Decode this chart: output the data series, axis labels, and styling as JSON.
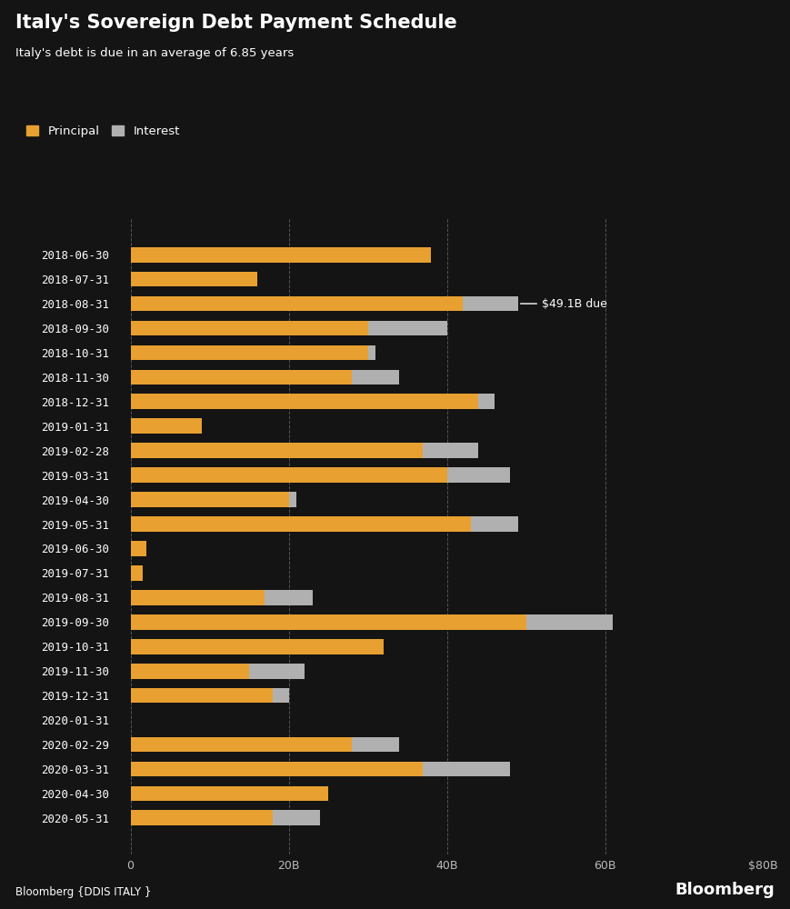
{
  "title": "Italy's Sovereign Debt Payment Schedule",
  "subtitle": "Italy's debt is due in an average of 6.85 years",
  "source": "Bloomberg {DDIS ITALY }",
  "annotation": "$49.1B due",
  "annotation_bar": "2018-08-31",
  "categories": [
    "2018-06-30",
    "2018-07-31",
    "2018-08-31",
    "2018-09-30",
    "2018-10-31",
    "2018-11-30",
    "2018-12-31",
    "2019-01-31",
    "2019-02-28",
    "2019-03-31",
    "2019-04-30",
    "2019-05-31",
    "2019-06-30",
    "2019-07-31",
    "2019-08-31",
    "2019-09-30",
    "2019-10-31",
    "2019-11-30",
    "2019-12-31",
    "2020-01-31",
    "2020-02-29",
    "2020-03-31",
    "2020-04-30",
    "2020-05-31"
  ],
  "principal": [
    38.0,
    16.0,
    42.0,
    30.0,
    30.0,
    28.0,
    44.0,
    9.0,
    37.0,
    40.0,
    20.0,
    43.0,
    2.0,
    1.5,
    17.0,
    50.0,
    32.0,
    15.0,
    18.0,
    0.0,
    28.0,
    37.0,
    25.0,
    18.0
  ],
  "interest": [
    0.0,
    0.0,
    7.0,
    10.0,
    1.0,
    6.0,
    2.0,
    0.0,
    7.0,
    8.0,
    1.0,
    6.0,
    0.0,
    0.0,
    6.0,
    11.0,
    0.0,
    7.0,
    2.0,
    0.0,
    6.0,
    11.0,
    0.0,
    6.0
  ],
  "principal_color": "#E8A030",
  "interest_color": "#B0B0B0",
  "bg_color": "#141414",
  "text_color": "#FFFFFF",
  "axis_text_color": "#BBBBBB",
  "grid_color": "#555555",
  "xlim": [
    -2,
    80
  ],
  "xticks": [
    0,
    20,
    40,
    60,
    80
  ],
  "xtick_labels": [
    "0",
    "20B",
    "40B",
    "60B",
    "$80B"
  ]
}
